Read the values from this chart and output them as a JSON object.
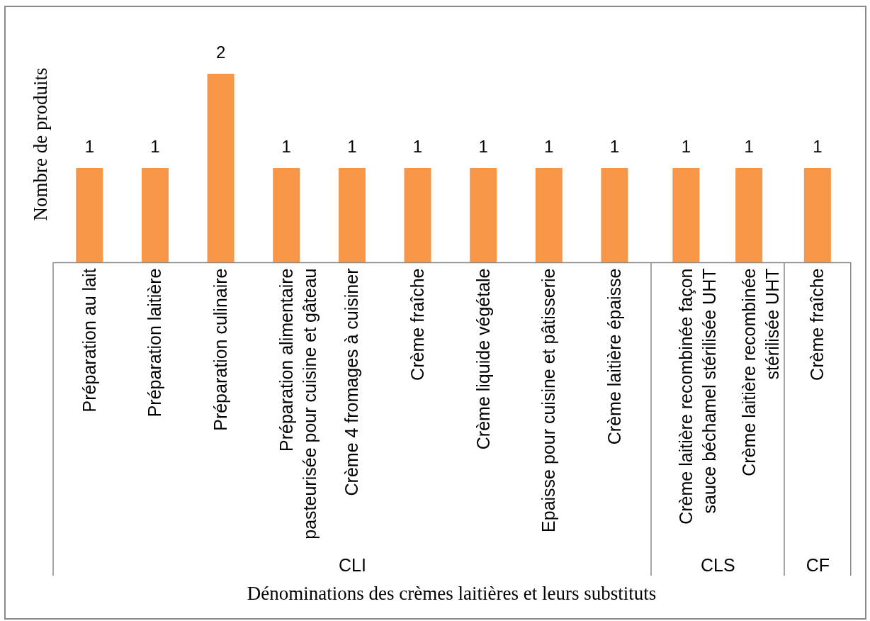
{
  "chart_data": [
    {
      "type": "bar",
      "xlabel": "CLI",
      "ylabel": "Nombre de produits",
      "categories": [
        "Préparation au lait",
        "Préparation laitière",
        "Préparation culinaire",
        "Préparation alimentaire pasteurisée pour cuisine et gâteau",
        "Crème 4 fromages à cuisiner",
        "Crème fraîche",
        "Crème liquide végétale",
        "Epaisse pour cuisine et pâtisserie",
        "Crème laitière épaisse"
      ],
      "values": [
        1,
        1,
        2,
        1,
        1,
        1,
        1,
        1,
        1
      ],
      "color": "#f79646",
      "data_labels": true,
      "tick_labels": "x",
      "annotations": [
        "Dénominations des crèmes laitières et leurs substituts"
      ]
    },
    {
      "type": "bar",
      "xlabel": "CLS",
      "categories": [
        "Crème laitière recombinée façon sauce béchamel stérilisée UHT",
        "Crème laitière recombinée stérilisée UHT"
      ],
      "values": [
        1,
        1
      ],
      "color": "#f79646",
      "data_labels": true,
      "tick_labels": "x"
    },
    {
      "type": "bar",
      "xlabel": "CF",
      "categories": [
        "Crème fraîche"
      ],
      "values": [
        1
      ],
      "color": "#f79646",
      "data_labels": true,
      "tick_labels": "x"
    }
  ]
}
